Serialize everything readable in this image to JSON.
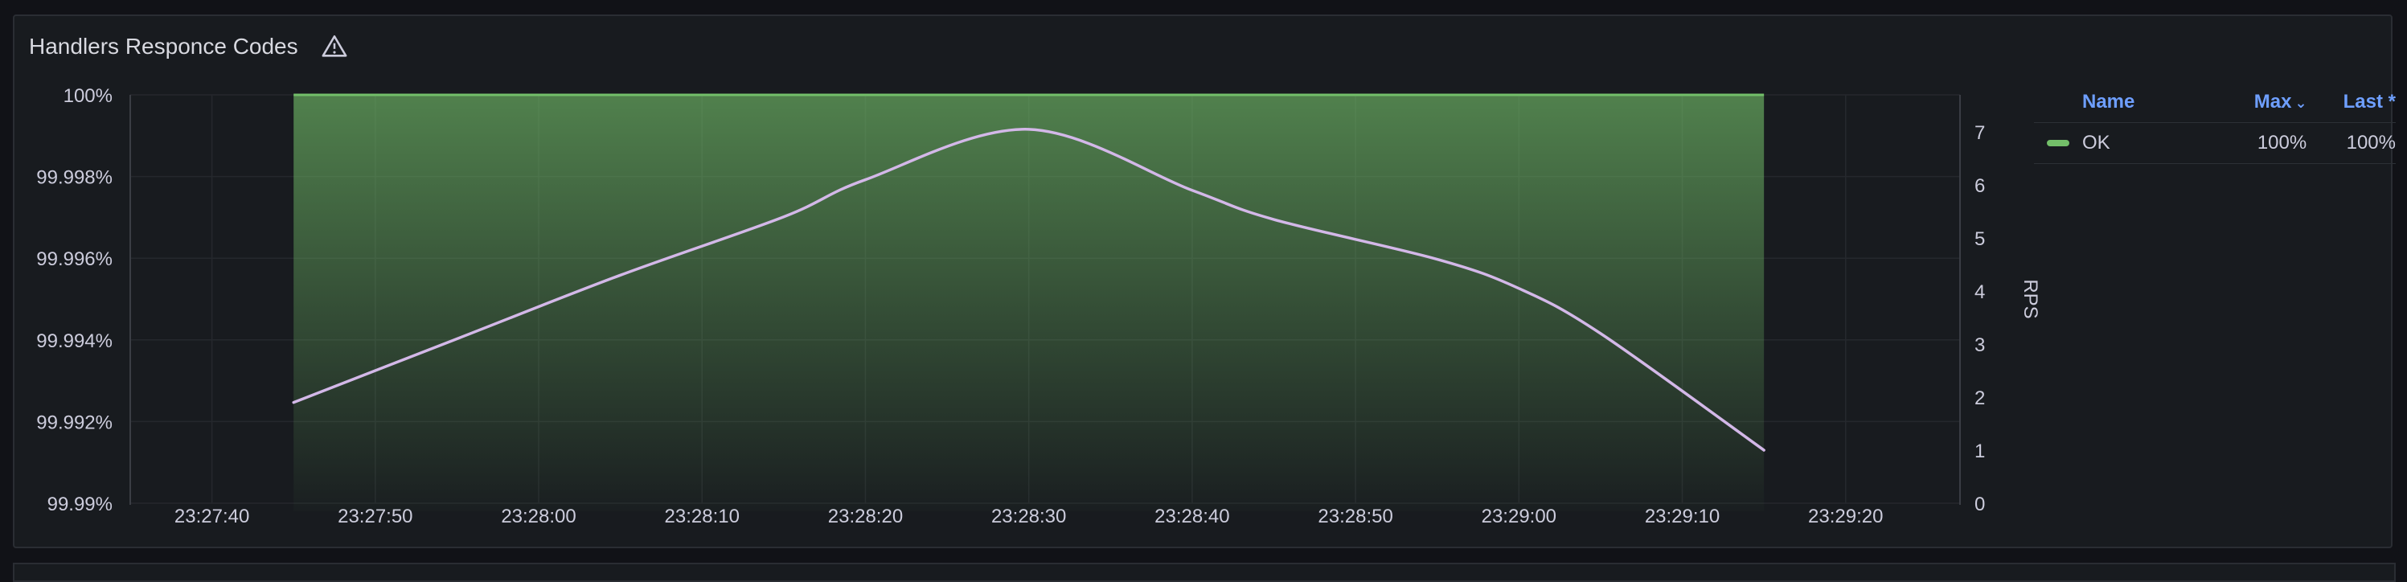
{
  "panel": {
    "title": "Handlers Responce Codes",
    "warning_icon": "warning-triangle-icon"
  },
  "legend": {
    "headers": {
      "name": "Name",
      "max": "Max",
      "last": "Last *"
    },
    "sort_icon": "chevron-down-icon",
    "rows": [
      {
        "name": "OK",
        "max": "100%",
        "last": "100%",
        "color": "#73bf69"
      }
    ]
  },
  "chart_data": {
    "type": "line",
    "x_ticks": [
      "23:27:40",
      "23:27:50",
      "23:28:00",
      "23:28:10",
      "23:28:20",
      "23:28:30",
      "23:28:40",
      "23:28:50",
      "23:29:00",
      "23:29:10",
      "23:29:20"
    ],
    "x_range": [
      "23:27:35",
      "23:29:27"
    ],
    "left_axis": {
      "ticks": [
        "100%",
        "99.998%",
        "99.996%",
        "99.994%",
        "99.992%",
        "99.99%"
      ],
      "range": [
        99.99,
        100
      ]
    },
    "right_axis": {
      "label": "RPS",
      "ticks": [
        "0",
        "1",
        "2",
        "3",
        "4",
        "5",
        "6",
        "7"
      ],
      "range": [
        0,
        7.7
      ]
    },
    "series": [
      {
        "name": "OK",
        "axis": "left",
        "style": "area",
        "color": "#73bf69",
        "x": [
          "23:27:45",
          "23:29:15"
        ],
        "values": [
          100,
          100
        ]
      },
      {
        "axis": "right",
        "style": "line",
        "color": "#d3b8e8",
        "x": [
          "23:27:45",
          "23:27:55",
          "23:28:05",
          "23:28:15",
          "23:28:20",
          "23:28:30",
          "23:28:40",
          "23:28:45",
          "23:28:55",
          "23:29:00",
          "23:29:05",
          "23:29:15"
        ],
        "values": [
          1.9,
          3.1,
          4.3,
          5.4,
          6.1,
          7.05,
          5.9,
          5.35,
          4.6,
          4.05,
          3.2,
          1.0
        ]
      }
    ],
    "grid": true
  }
}
